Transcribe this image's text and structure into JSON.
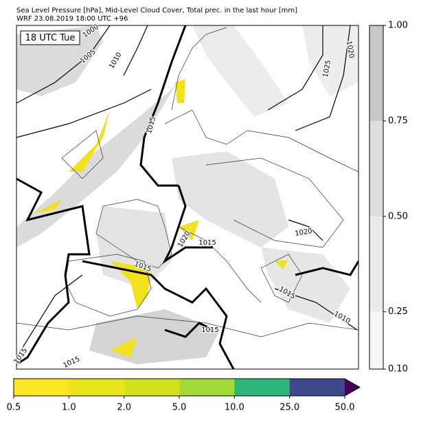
{
  "header": {
    "title": "Sea Level Pressure [hPa], Mid-Level Cloud Cover, Total prec. in the last hour [mm]",
    "subtitle": "WRF 23.08.2019 18:00 UTC +96"
  },
  "map": {
    "time_label": "18 UTC Tue",
    "contour_labels": [
      1000,
      1005,
      1010,
      1015,
      1020,
      1025,
      1015,
      1020,
      1015,
      1020,
      1015,
      1015,
      1010,
      1015,
      1015
    ]
  },
  "colorbar_right": {
    "colors": [
      "#f7f7f7",
      "#ebebeb",
      "#dedede",
      "#c8c8c8"
    ],
    "lim": [
      0.1,
      1.0
    ],
    "ticks": [
      {
        "value": 0.1,
        "label": "0.10"
      },
      {
        "value": 0.25,
        "label": "0.25"
      },
      {
        "value": 0.5,
        "label": "0.50"
      },
      {
        "value": 0.75,
        "label": "0.75"
      },
      {
        "value": 1.0,
        "label": "1.00"
      }
    ]
  },
  "colorbar_bottom": {
    "colors": [
      "#fde725",
      "#eae51a",
      "#d2e21b",
      "#a2da37",
      "#2fb47c",
      "#3e4a89"
    ],
    "extend_color": "#440154",
    "ticks": [
      0.5,
      {
        "value": 1.0,
        "label": "1.0"
      },
      {
        "value": 2.0,
        "label": "2.0"
      },
      {
        "value": 5.0,
        "label": "5.0"
      },
      {
        "value": 10.0,
        "label": "10.0"
      },
      {
        "value": 25.0,
        "label": "25.0"
      },
      {
        "value": 50.0,
        "label": "50.0"
      }
    ]
  }
}
